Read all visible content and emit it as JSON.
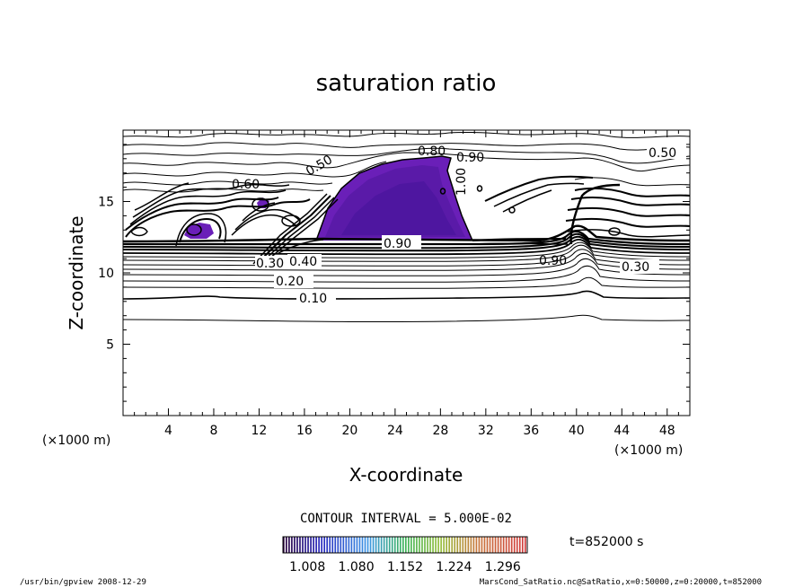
{
  "chart_data": {
    "type": "contour",
    "title": "saturation ratio",
    "xlabel": "X-coordinate",
    "ylabel": "Z-coordinate",
    "x_unit_label": "(×1000 m)",
    "z_unit_label": "(×1000 m)",
    "xlim": [
      0,
      50
    ],
    "ylim": [
      0,
      20
    ],
    "x_ticks": [
      "4",
      "8",
      "12",
      "16",
      "20",
      "24",
      "28",
      "32",
      "36",
      "40",
      "44",
      "48"
    ],
    "y_ticks": [
      "5",
      "10",
      "15"
    ],
    "contour_interval_text": "CONTOUR INTERVAL = 5.000E-02",
    "contour_labels": [
      "0.10",
      "0.20",
      "0.30",
      "0.40",
      "0.50",
      "0.60",
      "0.80",
      "0.90",
      "1.00"
    ],
    "colorbar": {
      "ticks": [
        "1.008",
        "1.080",
        "1.152",
        "1.224",
        "1.296"
      ],
      "vmin": 0.972,
      "vmax": 1.332
    },
    "time_text": "t=852000 s",
    "footer_left": "/usr/bin/gpview  2008-12-29",
    "footer_right": "MarsCond_SatRatio.nc@SatRatio,x=0:50000,z=0:20000,t=852000"
  }
}
